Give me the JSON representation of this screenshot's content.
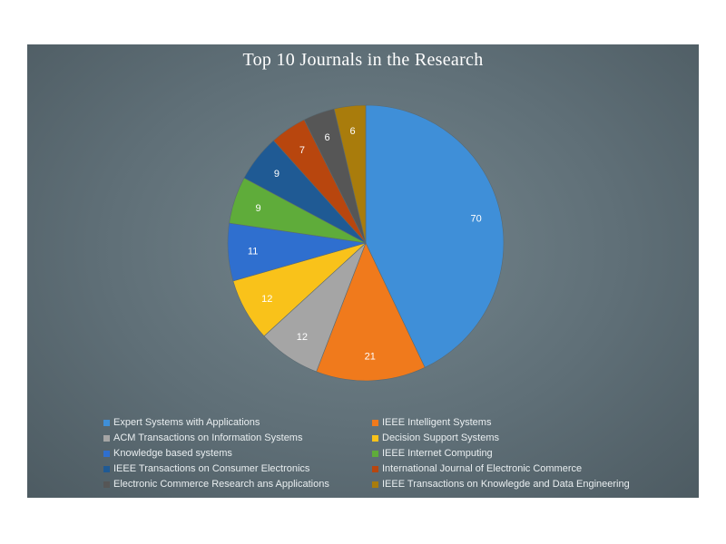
{
  "chart_data": {
    "type": "pie",
    "title": "Top 10 Journals in the Research",
    "categories": [
      "Expert Systems with Applications",
      "IEEE Intelligent Systems",
      "ACM Transactions on Information Systems",
      "Decision Support Systems",
      "Knowledge based systems",
      "IEEE Internet Computing",
      "IEEE Transactions on Consumer Electronics",
      "International Journal of Electronic Commerce",
      "Electronic Commerce Research ans Applications",
      "IEEE Transactions on Knowlegde and Data Engineering"
    ],
    "values": [
      70,
      21,
      12,
      12,
      11,
      9,
      9,
      7,
      6,
      6
    ],
    "colors": [
      "#3f8fd8",
      "#f07a1c",
      "#a5a5a5",
      "#f9c21a",
      "#2f6fcf",
      "#5fac3a",
      "#1f5a94",
      "#b8460e",
      "#565656",
      "#a97c0c"
    ],
    "legend": "bottom",
    "data_labels": true
  }
}
